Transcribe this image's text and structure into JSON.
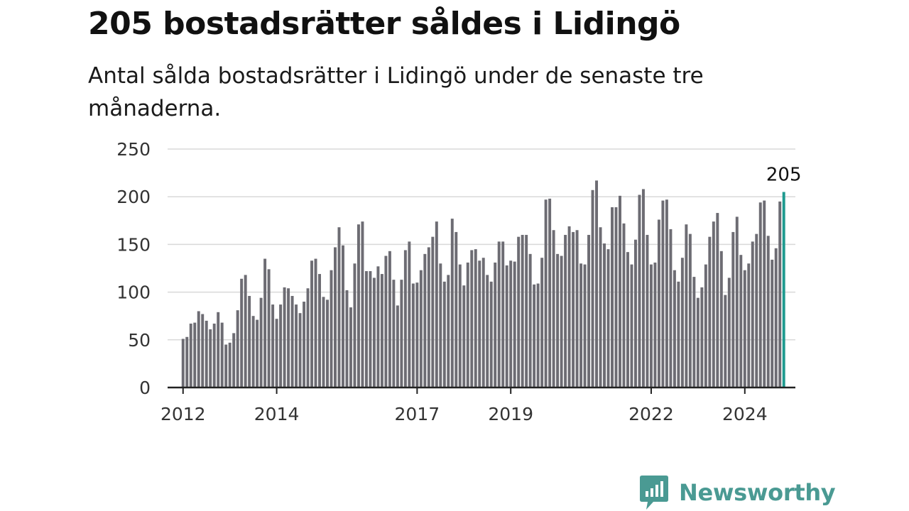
{
  "header": {
    "title": "205 bostadsrätter såldes i Lidingö",
    "subtitle": "Antal sålda bostadsrätter i Lidingö under de senaste tre månaderna."
  },
  "brand": {
    "name": "Newsworthy",
    "color": "#4a9a93"
  },
  "colors": {
    "bar": "#6d6c73",
    "highlight": "#1e9a8f",
    "grid": "#d9d9d9",
    "axis": "#222222"
  },
  "chart_data": {
    "type": "bar",
    "title": "205 bostadsrätter såldes i Lidingö",
    "subtitle": "Antal sålda bostadsrätter i Lidingö under de senaste tre månaderna.",
    "x_range": [
      2011.67,
      2025.08
    ],
    "ylim": [
      0,
      250
    ],
    "y_ticks": [
      0,
      50,
      100,
      150,
      200,
      250
    ],
    "x_ticks": [
      "2012",
      "2014",
      "2017",
      "2019",
      "2022",
      "2024"
    ],
    "grid": true,
    "x_start": 2012.0,
    "x_step": 0.08333,
    "values": [
      51,
      53,
      67,
      68,
      80,
      77,
      70,
      61,
      67,
      79,
      68,
      45,
      47,
      57,
      81,
      114,
      118,
      96,
      75,
      71,
      94,
      135,
      124,
      87,
      72,
      87,
      105,
      104,
      96,
      87,
      78,
      90,
      104,
      133,
      135,
      119,
      95,
      92,
      123,
      147,
      168,
      149,
      102,
      84,
      130,
      171,
      174,
      122,
      122,
      115,
      127,
      119,
      138,
      143,
      113,
      86,
      113,
      144,
      153,
      109,
      110,
      123,
      140,
      147,
      158,
      174,
      130,
      111,
      118,
      177,
      163,
      129,
      107,
      131,
      144,
      145,
      133,
      136,
      118,
      111,
      131,
      153,
      153,
      128,
      133,
      132,
      158,
      160,
      160,
      140,
      108,
      109,
      136,
      197,
      198,
      165,
      140,
      138,
      160,
      169,
      163,
      165,
      130,
      129,
      160,
      207,
      217,
      168,
      151,
      145,
      189,
      189,
      201,
      172,
      142,
      129,
      155,
      202,
      208,
      160,
      129,
      131,
      176,
      196,
      197,
      166,
      123,
      111,
      136,
      171,
      161,
      116,
      94,
      105,
      129,
      158,
      174,
      183,
      143,
      97,
      115,
      163,
      179,
      139,
      123,
      130,
      153,
      161,
      194,
      196,
      159,
      134,
      146,
      195,
      205
    ],
    "highlight_last": true,
    "highlight_label": "205"
  }
}
